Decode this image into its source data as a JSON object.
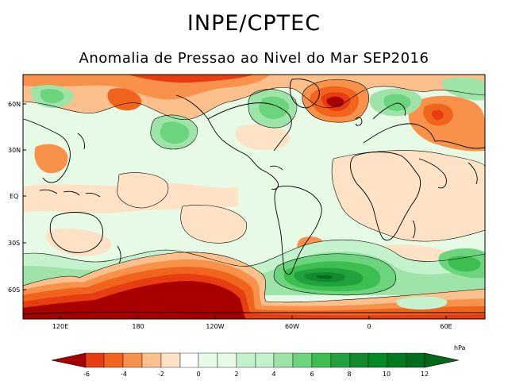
{
  "header": {
    "institution": "INPE/CPTEC",
    "title": "Anomalia de Pressao ao Nivel do Mar SEP2016"
  },
  "map": {
    "variable": "sea-level pressure anomaly",
    "period": "SEP2016",
    "lat_labels": [
      "60N",
      "30N",
      "EQ",
      "30S",
      "60S"
    ],
    "lon_labels": [
      "120E",
      "180",
      "120W",
      "60W",
      "0",
      "60E"
    ]
  },
  "legend": {
    "unit": "hPa",
    "tick_labels": [
      "-6",
      "-4",
      "-2",
      "0",
      "2",
      "4",
      "6",
      "8",
      "10",
      "12"
    ],
    "colors": {
      "neg_6": "#a80000",
      "neg_5": "#e83c12",
      "neg_4": "#f0641e",
      "neg_3": "#f8914a",
      "neg_2": "#fcc08c",
      "neg_1": "#fde2c6",
      "pos_0": "#e6fae6",
      "pos_1": "#c4f2cc",
      "pos_2": "#9ee4a8",
      "pos_3": "#6cd47c",
      "pos_4": "#3cbe50",
      "pos_5": "#22a23c",
      "pos_6": "#128a2e",
      "pos_7": "#006e1e"
    }
  }
}
